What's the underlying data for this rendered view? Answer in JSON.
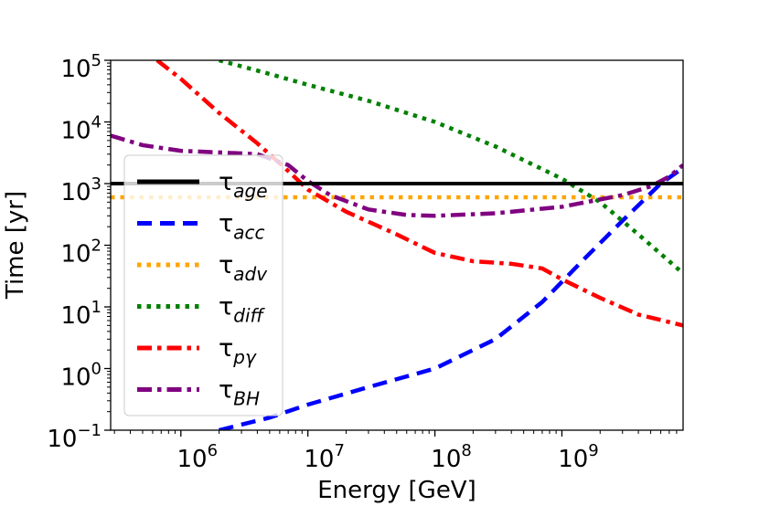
{
  "chart_data": {
    "type": "line",
    "title": "",
    "xlabel": "Energy [GeV]",
    "ylabel": "Time [yr]",
    "xscale": "log",
    "yscale": "log",
    "xlim": [
      280000,
      9000000000
    ],
    "ylim": [
      0.1,
      100000
    ],
    "grid": false,
    "legend_position": "center-left",
    "x_ticks": [
      {
        "value": 1000000,
        "base": "10",
        "exp": "6"
      },
      {
        "value": 10000000,
        "base": "10",
        "exp": "7"
      },
      {
        "value": 100000000,
        "base": "10",
        "exp": "8"
      },
      {
        "value": 1000000000,
        "base": "10",
        "exp": "9"
      }
    ],
    "y_ticks": [
      {
        "value": 0.1,
        "base": "10",
        "exp": "−1"
      },
      {
        "value": 1,
        "base": "10",
        "exp": "0"
      },
      {
        "value": 10,
        "base": "10",
        "exp": "1"
      },
      {
        "value": 100,
        "base": "10",
        "exp": "2"
      },
      {
        "value": 1000,
        "base": "10",
        "exp": "3"
      },
      {
        "value": 10000,
        "base": "10",
        "exp": "4"
      },
      {
        "value": 100000,
        "base": "10",
        "exp": "5"
      }
    ],
    "series": [
      {
        "key": "age",
        "symbol": "τ",
        "sub": "age",
        "color": "#000000",
        "style": "solid",
        "x": [
          280000,
          9000000000
        ],
        "y": [
          1000,
          1000
        ]
      },
      {
        "key": "acc",
        "symbol": "τ",
        "sub": "acc",
        "color": "#0000ff",
        "style": "dashed",
        "x": [
          2000000,
          5000000,
          10000000,
          30000000,
          100000000,
          300000000,
          700000000,
          1500000000,
          3000000000,
          6000000000,
          9000000000
        ],
        "y": [
          0.1,
          0.16,
          0.26,
          0.5,
          1.0,
          3.0,
          12,
          60,
          250,
          1000,
          1800
        ]
      },
      {
        "key": "adv",
        "symbol": "τ",
        "sub": "adv",
        "color": "#ffa500",
        "style": "dotted",
        "x": [
          280000,
          9000000000
        ],
        "y": [
          600,
          600
        ]
      },
      {
        "key": "diff",
        "symbol": "τ",
        "sub": "diff",
        "color": "#008000",
        "style": "dotted",
        "x": [
          2000000,
          5000000,
          10000000,
          30000000,
          100000000,
          300000000,
          1000000000,
          2000000000,
          4000000000,
          9000000000
        ],
        "y": [
          100000,
          60000,
          40000,
          22000,
          10000,
          4000,
          1200,
          500,
          150,
          35
        ]
      },
      {
        "key": "pgamma",
        "symbol": "τ",
        "sub": "pγ",
        "color": "#ff0000",
        "style": "dashdot",
        "x": [
          650000,
          1000000,
          2000000,
          4000000,
          7000000,
          10000000,
          20000000,
          50000000,
          100000000,
          200000000,
          400000000,
          700000000,
          1000000000,
          2000000000,
          4000000000,
          9000000000
        ],
        "y": [
          100000,
          50000,
          14000,
          4500,
          1600,
          800,
          350,
          150,
          75,
          55,
          50,
          42,
          28,
          14,
          7.5,
          5.0
        ]
      },
      {
        "key": "bh",
        "symbol": "τ",
        "sub": "BH",
        "color": "#800080",
        "style": "dashdot",
        "x": [
          280000,
          500000,
          1000000,
          2000000,
          4000000,
          7000000,
          10000000,
          15000000,
          30000000,
          60000000,
          100000000,
          300000000,
          1000000000,
          3000000000,
          5000000000,
          7000000000,
          9000000000
        ],
        "y": [
          6000,
          4200,
          3400,
          3200,
          3000,
          2000,
          1100,
          650,
          380,
          310,
          300,
          330,
          420,
          650,
          900,
          1300,
          2000
        ]
      }
    ]
  }
}
